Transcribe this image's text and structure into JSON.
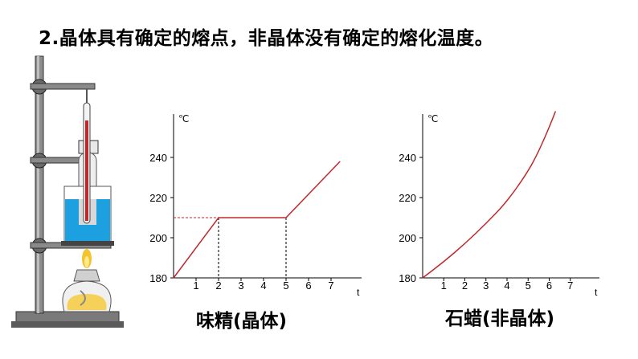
{
  "heading": "2.晶体具有确定的熔点，非晶体没有确定的熔化温度。",
  "captions": {
    "left": "味精(晶体)",
    "right": "石蜡(非晶体)"
  },
  "colors": {
    "curve": "#c0282c",
    "axis": "#000000",
    "guide": "#c0282c"
  },
  "chart_data": [
    {
      "type": "line",
      "ylabel": "℃",
      "xlabel": "t",
      "ylim": [
        180,
        250
      ],
      "xlim": [
        0,
        8
      ],
      "x_ticks": [
        "1",
        "2",
        "3",
        "4",
        "5",
        "6",
        "7"
      ],
      "y_ticks": [
        "180",
        "200",
        "220",
        "240"
      ],
      "series": [
        {
          "x": [
            0,
            2,
            5,
            7.4
          ],
          "y": [
            180,
            210,
            210,
            238
          ]
        }
      ],
      "guides": {
        "plateau_y": 210,
        "start_x": 2,
        "end_x": 5
      }
    },
    {
      "type": "line",
      "ylabel": "℃",
      "xlabel": "t",
      "ylim": [
        180,
        250
      ],
      "xlim": [
        0,
        8
      ],
      "x_ticks": [
        "1",
        "2",
        "3",
        "4",
        "5",
        "6",
        "7"
      ],
      "y_ticks": [
        "180",
        "200",
        "220",
        "240"
      ],
      "series": [
        {
          "x": [
            0,
            1,
            2,
            3,
            4,
            5,
            5.5,
            6,
            6.3
          ],
          "y": [
            180,
            188,
            197,
            207,
            218,
            233,
            243,
            255,
            263
          ]
        }
      ]
    }
  ]
}
